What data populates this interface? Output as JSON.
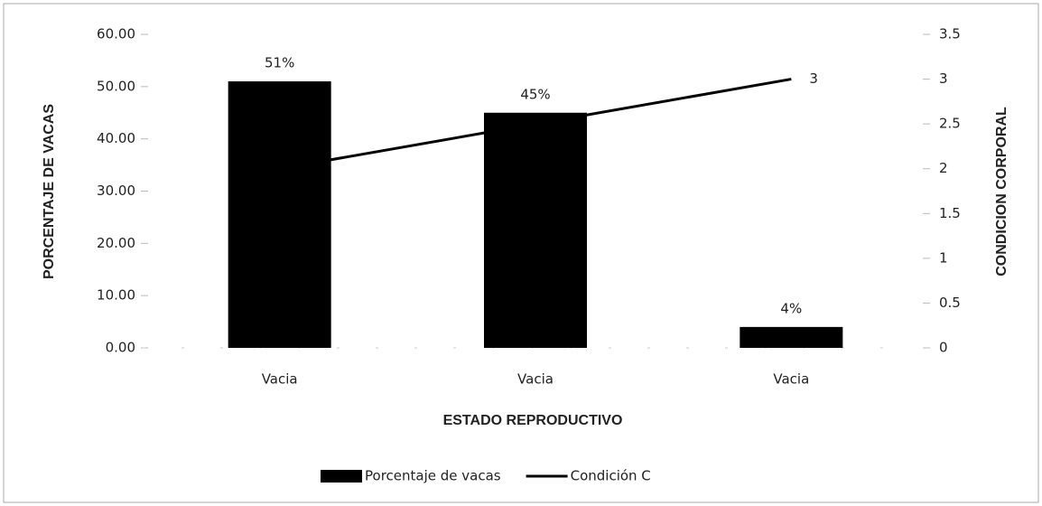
{
  "chart_data": {
    "type": "bar",
    "categories": [
      "Vacia",
      "Vacia",
      "Vacia"
    ],
    "xlabel": "ESTADO REPRODUCTIVO",
    "ylabel": "PORCENTAJE DE VACAS",
    "y2label": "CONDICION CORPORAL",
    "series": [
      {
        "name": "Porcentaje de vacas",
        "type": "bar",
        "color": "#000000",
        "values": [
          51,
          45,
          4
        ],
        "value_labels": [
          "51%",
          "45%",
          "4%"
        ]
      },
      {
        "name": "Condición C",
        "type": "line",
        "axis": "y2",
        "color": "#000000",
        "values": [
          2,
          2.5,
          3
        ],
        "value_labels": [
          null,
          null,
          "3"
        ]
      }
    ],
    "ylim": [
      0,
      60
    ],
    "yticks": [
      {
        "value": 0,
        "label": "0.00"
      },
      {
        "value": 10,
        "label": "10.00"
      },
      {
        "value": 20,
        "label": "20.00"
      },
      {
        "value": 30,
        "label": "30.00"
      },
      {
        "value": 40,
        "label": "40.00"
      },
      {
        "value": 50,
        "label": "50.00"
      },
      {
        "value": 60,
        "label": "60.00"
      }
    ],
    "y2lim": [
      0,
      3.5
    ],
    "y2ticks": [
      0,
      0.5,
      1,
      1.5,
      2,
      2.5,
      3,
      3.5
    ],
    "legend": "bottom",
    "grid": false
  }
}
